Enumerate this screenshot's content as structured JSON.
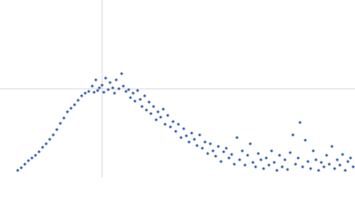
{
  "chart_data": {
    "type": "scatter",
    "color": "#3f67b1",
    "grid": true,
    "tick_labels": false,
    "xlim": [
      0,
      400
    ],
    "ylim": [
      0,
      200
    ],
    "xticks": [
      115
    ],
    "yticks": [
      100
    ],
    "x": [
      20,
      24,
      28,
      32,
      36,
      40,
      44,
      48,
      52,
      56,
      60,
      64,
      68,
      72,
      76,
      80,
      84,
      88,
      92,
      96,
      100,
      104,
      106,
      108,
      110,
      112,
      115,
      117,
      119,
      122,
      124,
      127,
      129,
      131,
      134,
      137,
      139,
      142,
      145,
      147,
      150,
      152,
      155,
      158,
      160,
      163,
      165,
      168,
      170,
      173,
      176,
      178,
      181,
      184,
      186,
      189,
      192,
      195,
      198,
      201,
      204,
      207,
      210,
      213,
      216,
      219,
      222,
      225,
      228,
      231,
      234,
      237,
      240,
      243,
      246,
      249,
      252,
      255,
      258,
      261,
      264,
      267,
      270,
      273,
      276,
      279,
      282,
      285,
      288,
      291,
      294,
      297,
      300,
      303,
      306,
      309,
      312,
      315,
      318,
      321,
      324,
      327,
      330,
      333,
      336,
      338,
      341,
      344,
      347,
      350,
      353,
      356,
      359,
      362,
      365,
      368,
      371,
      374,
      377,
      380,
      383,
      386,
      389,
      392,
      395,
      398
    ],
    "y": [
      8,
      11,
      15,
      19,
      22,
      25,
      29,
      34,
      38,
      43,
      48,
      54,
      61,
      67,
      74,
      78,
      82,
      87,
      92,
      95,
      97,
      103,
      96,
      110,
      98,
      101,
      104,
      96,
      112,
      99,
      107,
      101,
      95,
      110,
      100,
      117,
      103,
      97,
      99,
      90,
      95,
      86,
      98,
      88,
      80,
      92,
      76,
      85,
      72,
      80,
      65,
      74,
      68,
      77,
      60,
      70,
      57,
      63,
      52,
      60,
      45,
      55,
      47,
      40,
      50,
      43,
      36,
      48,
      33,
      40,
      27,
      38,
      30,
      24,
      35,
      18,
      29,
      33,
      22,
      26,
      15,
      45,
      20,
      30,
      14,
      25,
      38,
      17,
      12,
      27,
      20,
      10,
      22,
      14,
      30,
      17,
      8,
      25,
      12,
      20,
      9,
      28,
      48,
      15,
      22,
      62,
      12,
      42,
      18,
      10,
      30,
      20,
      8,
      17,
      12,
      25,
      15,
      35,
      10,
      20,
      14,
      26,
      8,
      18,
      22,
      12
    ]
  }
}
